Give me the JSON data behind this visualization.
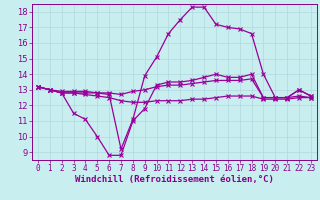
{
  "title": "",
  "xlabel": "Windchill (Refroidissement éolien,°C)",
  "ylabel": "",
  "bg_color": "#c8eef0",
  "grid_color": "#b0d8dc",
  "line_color": "#990099",
  "xlim": [
    -0.5,
    23.5
  ],
  "ylim": [
    8.5,
    18.5
  ],
  "xticks": [
    0,
    1,
    2,
    3,
    4,
    5,
    6,
    7,
    8,
    9,
    10,
    11,
    12,
    13,
    14,
    15,
    16,
    17,
    18,
    19,
    20,
    21,
    22,
    23
  ],
  "yticks": [
    9,
    10,
    11,
    12,
    13,
    14,
    15,
    16,
    17,
    18
  ],
  "line1_x": [
    0,
    1,
    2,
    3,
    4,
    5,
    6,
    7,
    8,
    9,
    10,
    11,
    12,
    13,
    14,
    15,
    16,
    17,
    18,
    19,
    20,
    21,
    22,
    23
  ],
  "line1_y": [
    13.2,
    13.0,
    12.8,
    11.5,
    11.1,
    10.0,
    8.8,
    8.8,
    11.0,
    11.8,
    13.3,
    13.5,
    13.5,
    13.6,
    13.8,
    14.0,
    13.8,
    13.8,
    14.0,
    12.5,
    12.5,
    12.5,
    13.0,
    12.6
  ],
  "line2_x": [
    0,
    1,
    2,
    3,
    4,
    5,
    6,
    7,
    8,
    9,
    10,
    11,
    12,
    13,
    14,
    15,
    16,
    17,
    18,
    19,
    20,
    21,
    22,
    23
  ],
  "line2_y": [
    13.2,
    13.0,
    12.9,
    12.9,
    12.9,
    12.8,
    12.8,
    12.7,
    12.9,
    13.0,
    13.2,
    13.3,
    13.3,
    13.4,
    13.5,
    13.6,
    13.6,
    13.6,
    13.7,
    12.5,
    12.5,
    12.5,
    12.6,
    12.5
  ],
  "line3_x": [
    0,
    1,
    2,
    3,
    4,
    5,
    6,
    7,
    8,
    9,
    10,
    11,
    12,
    13,
    14,
    15,
    16,
    17,
    18,
    19,
    20,
    21,
    22,
    23
  ],
  "line3_y": [
    13.2,
    13.0,
    12.8,
    12.8,
    12.7,
    12.6,
    12.5,
    12.3,
    12.2,
    12.2,
    12.3,
    12.3,
    12.3,
    12.4,
    12.4,
    12.5,
    12.6,
    12.6,
    12.6,
    12.4,
    12.4,
    12.4,
    12.5,
    12.5
  ],
  "line4_x": [
    0,
    1,
    2,
    3,
    4,
    5,
    6,
    7,
    8,
    9,
    10,
    11,
    12,
    13,
    14,
    15,
    16,
    17,
    18,
    19,
    20,
    21,
    22,
    23
  ],
  "line4_y": [
    13.2,
    13.0,
    12.8,
    12.8,
    12.8,
    12.8,
    12.7,
    9.2,
    11.1,
    13.9,
    15.1,
    16.6,
    17.5,
    18.3,
    18.3,
    17.2,
    17.0,
    16.9,
    16.6,
    14.0,
    12.5,
    12.5,
    13.0,
    12.6
  ],
  "marker_size": 3,
  "linewidth": 0.9,
  "xlabel_fontsize": 6.5,
  "tick_fontsize": 5.5,
  "axis_color": "#880088"
}
